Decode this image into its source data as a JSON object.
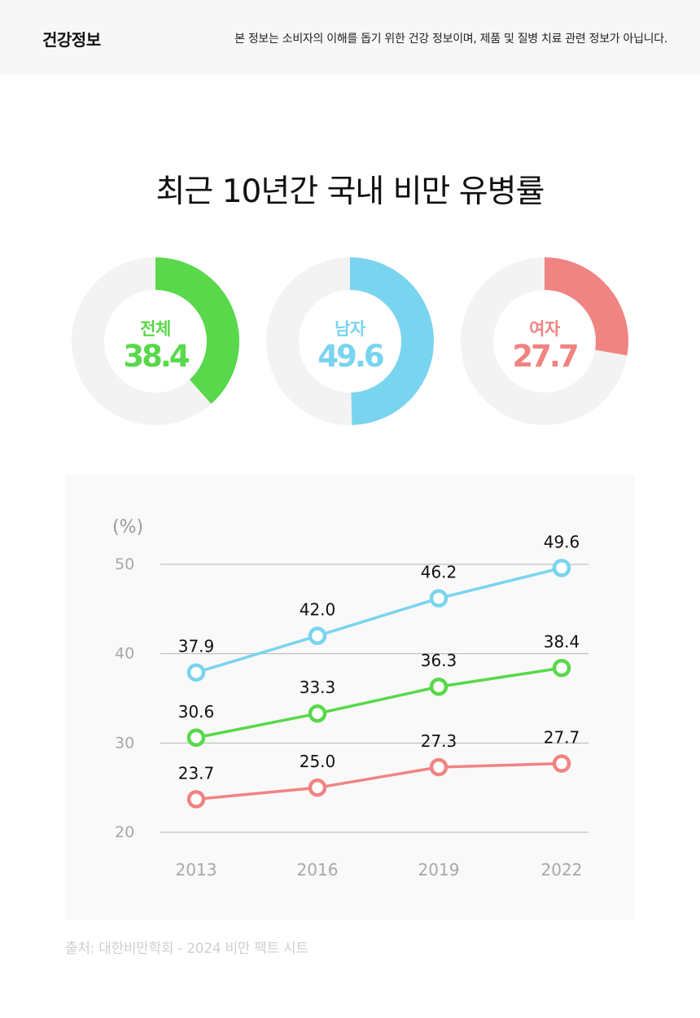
{
  "header": {
    "brand": "건강정보",
    "notice": "본 정보는 소비자의 이해를 돕기 위한 건강 정보이며, 제품 및 질병 치료 관련 정보가 아닙니다."
  },
  "title": "최근 10년간 국내 비만 유병률",
  "donuts": [
    {
      "label": "전체",
      "value": "38.4",
      "percent": 38.4,
      "color": "#58d84a"
    },
    {
      "label": "남자",
      "value": "49.6",
      "percent": 49.6,
      "color": "#79d4ef"
    },
    {
      "label": "여자",
      "value": "27.7",
      "percent": 27.7,
      "color": "#f08482"
    }
  ],
  "chart_data": {
    "type": "line",
    "x": [
      "2013",
      "2016",
      "2019",
      "2022"
    ],
    "ylabel": "(%)",
    "ylim": [
      20,
      50
    ],
    "yticks": [
      "50",
      "40",
      "30",
      "20"
    ],
    "grid": true,
    "series": [
      {
        "values": [
          37.9,
          42.0,
          46.2,
          49.6
        ],
        "labels": [
          "37.9",
          "42.0",
          "46.2",
          "49.6"
        ],
        "color": "#79d4ef"
      },
      {
        "values": [
          30.6,
          33.3,
          36.3,
          38.4
        ],
        "labels": [
          "30.6",
          "33.3",
          "36.3",
          "38.4"
        ],
        "color": "#58d84a"
      },
      {
        "values": [
          23.7,
          25.0,
          27.3,
          27.7
        ],
        "labels": [
          "23.7",
          "25.0",
          "27.3",
          "27.7"
        ],
        "color": "#f08482"
      }
    ]
  },
  "source": "출처: 대한비만학회 - 2024 비만 팩트 시트"
}
